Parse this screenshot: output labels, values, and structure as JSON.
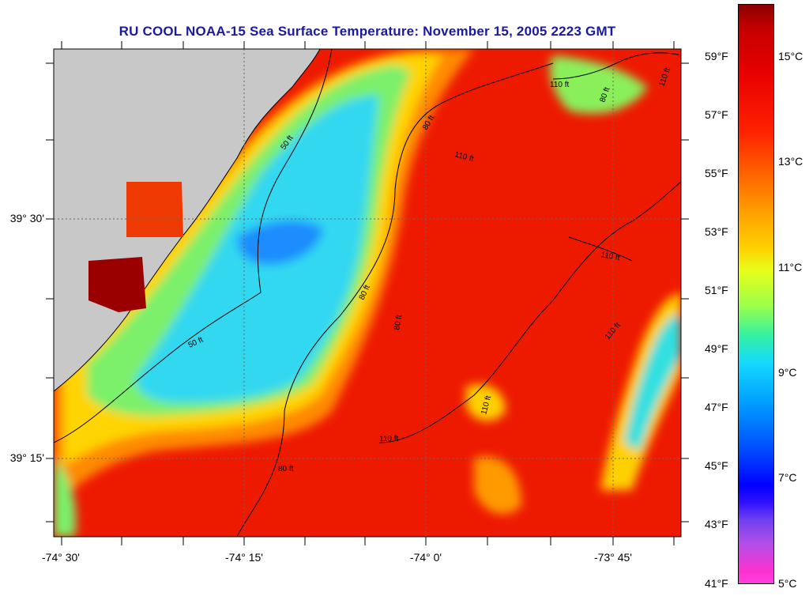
{
  "title": "RU COOL  NOAA-15  Sea Surface Temperature:  November 15, 2005 2223 GMT",
  "axes": {
    "lat_labels": [
      "39° 30'",
      "39° 15'"
    ],
    "lon_labels": [
      "-74° 30'",
      "-74° 15'",
      "-74° 0'",
      "-73° 45'"
    ]
  },
  "colorbar": {
    "fahrenheit_labels": [
      "59°F",
      "57°F",
      "55°F",
      "53°F",
      "51°F",
      "49°F",
      "47°F",
      "45°F",
      "43°F",
      "41°F"
    ],
    "celsius_labels": [
      "15°C",
      "13°C",
      "11°C",
      "9°C",
      "7°C",
      "5°C"
    ],
    "range_c": [
      5,
      16
    ]
  },
  "isobath_labels": [
    "50 ft",
    "50 ft",
    "80 ft",
    "80 ft",
    "80 ft",
    "80 ft",
    "80 ft",
    "110 ft",
    "110 ft",
    "110 ft",
    "110 ft",
    "110 ft",
    "110 ft",
    "110 ft"
  ],
  "colors": {
    "land": "#c8c8c8",
    "title": "#1a1aa0",
    "warm": "#ee1a00",
    "cool": "#30d8f0"
  }
}
